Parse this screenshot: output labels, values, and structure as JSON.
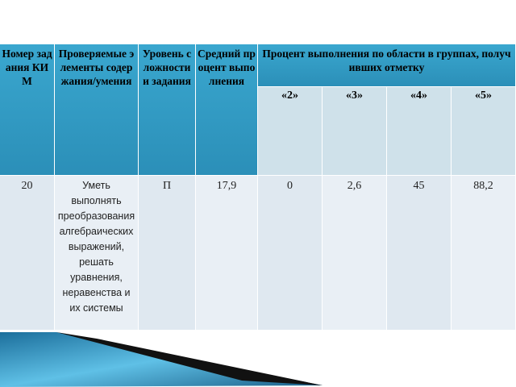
{
  "table": {
    "header": {
      "columns": [
        "Номер задания КИМ",
        "Проверяемые элементы содержания/умения",
        "Уровень сложности и задания",
        "Средний процент выполнения"
      ],
      "group": "Процент выполнения по области в группах, получивших отметку",
      "grades": [
        "«2»",
        "«3»",
        "«4»",
        "«5»"
      ]
    },
    "rows": [
      [
        "20",
        "Уметь выполнять преобразования алгебраических выражений, решать уравнения, неравенства и их системы",
        "П",
        "17,9",
        "0",
        "2,6",
        "45",
        "88,2"
      ]
    ]
  }
}
